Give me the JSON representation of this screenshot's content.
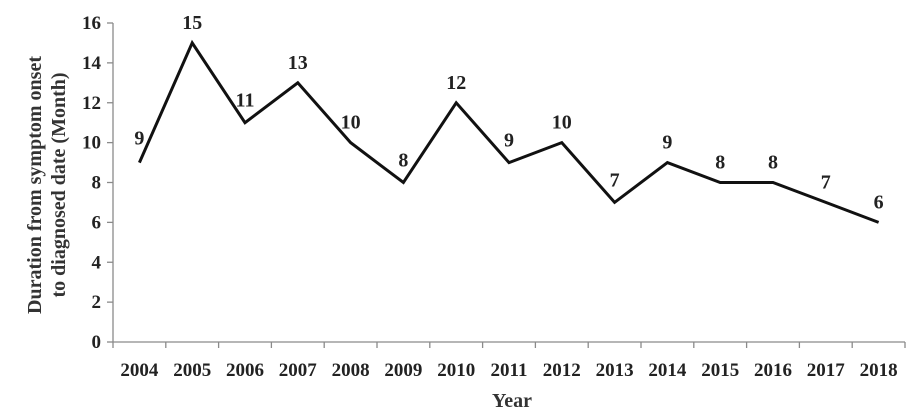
{
  "chart_data": {
    "type": "line",
    "x": [
      "2004",
      "2005",
      "2006",
      "2007",
      "2008",
      "2009",
      "2010",
      "2011",
      "2012",
      "2013",
      "2014",
      "2015",
      "2016",
      "2017",
      "2018"
    ],
    "series": [
      {
        "values": [
          9,
          15,
          11,
          13,
          10,
          8,
          12,
          9,
          10,
          7,
          9,
          8,
          8,
          7,
          6
        ]
      }
    ],
    "data_labels": [
      "9",
      "15",
      "11",
      "13",
      "10",
      "8",
      "12",
      "9",
      "10",
      "7",
      "9",
      "8",
      "8",
      "7",
      "6"
    ],
    "xlabel": "Year",
    "ylabel_lines": [
      "Duration from symptom onset",
      "to diagnosed date (Month)"
    ],
    "yticks": [
      "0",
      "2",
      "4",
      "6",
      "8",
      "10",
      "12",
      "14",
      "16"
    ],
    "ylim": [
      0,
      16
    ],
    "grid": false,
    "legend": "none",
    "line_color": "#111111",
    "axis_color": "#8a8a8a"
  }
}
